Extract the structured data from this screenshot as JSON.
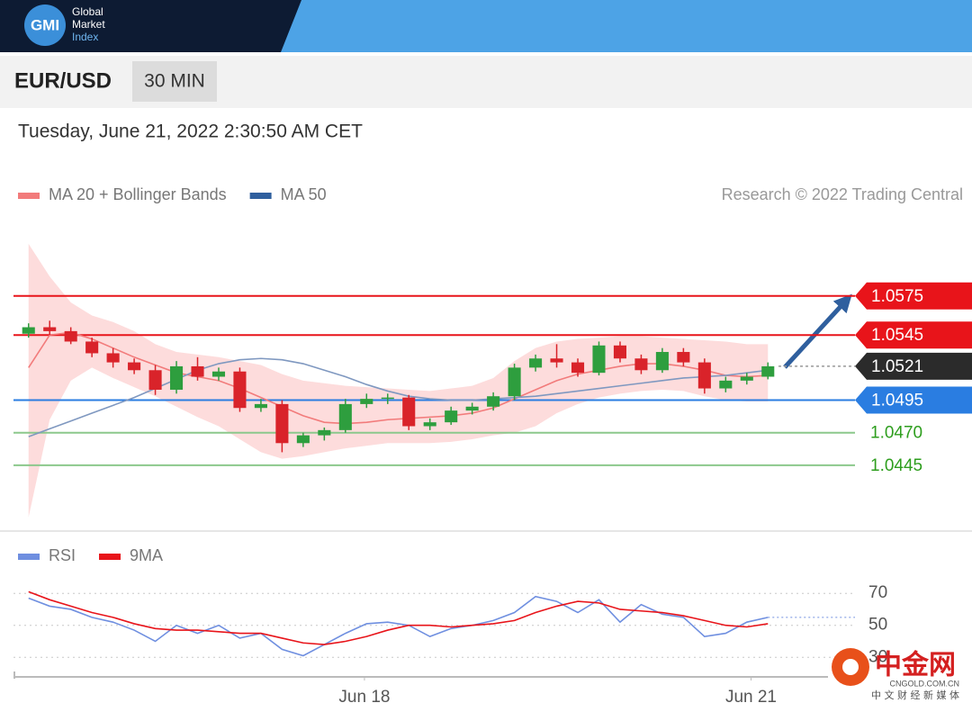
{
  "header": {
    "logo": "GMI",
    "brand": [
      "Global",
      "Market",
      "Index"
    ]
  },
  "symbol": "EUR/USD",
  "interval": "30 MIN",
  "datetime": "Tuesday, June 21, 2022 2:30:50 AM CET",
  "watermark": {
    "name": "中金网",
    "url": "CNGOLD.COM.CN",
    "tagline": "中 文 财 经 新 媒 体"
  },
  "chart_data": [
    {
      "type": "candlestick",
      "credit": "Research © 2022 Trading Central",
      "xlim": [
        -0.5,
        35.5
      ],
      "ylim": [
        1.04,
        1.0635
      ],
      "up_color": "#2e9e3e",
      "down_color": "#d9232a",
      "candles": {
        "open": [
          1.0546,
          1.0551,
          1.0548,
          1.054,
          1.0531,
          1.0524,
          1.0518,
          1.0503,
          1.0521,
          1.0513,
          1.0517,
          1.0489,
          1.0492,
          1.0462,
          1.0468,
          1.0472,
          1.0492,
          1.0496,
          1.0497,
          1.0475,
          1.0478,
          1.0487,
          1.049,
          1.0498,
          1.052,
          1.0527,
          1.0524,
          1.0516,
          1.0537,
          1.0527,
          1.0518,
          1.0532,
          1.0524,
          1.0504,
          1.051,
          1.0513
        ],
        "high": [
          1.0554,
          1.0556,
          1.0551,
          1.0543,
          1.0535,
          1.0527,
          1.0522,
          1.0525,
          1.0528,
          1.052,
          1.052,
          1.0496,
          1.0495,
          1.047,
          1.0474,
          1.0496,
          1.05,
          1.05,
          1.0499,
          1.0481,
          1.049,
          1.0493,
          1.0501,
          1.0523,
          1.053,
          1.0538,
          1.0527,
          1.054,
          1.054,
          1.053,
          1.0535,
          1.0535,
          1.0527,
          1.0513,
          1.0516,
          1.0524
        ],
        "low": [
          1.0543,
          1.0545,
          1.0538,
          1.0528,
          1.052,
          1.0515,
          1.0499,
          1.05,
          1.051,
          1.051,
          1.0486,
          1.0486,
          1.0455,
          1.0459,
          1.0464,
          1.047,
          1.0489,
          1.0492,
          1.0472,
          1.0472,
          1.0476,
          1.0484,
          1.0487,
          1.0495,
          1.0517,
          1.052,
          1.0513,
          1.0514,
          1.0524,
          1.0515,
          1.0516,
          1.0521,
          1.05,
          1.0501,
          1.0507,
          1.0511
        ],
        "close": [
          1.0551,
          1.0548,
          1.054,
          1.0531,
          1.0524,
          1.0518,
          1.0503,
          1.0521,
          1.0513,
          1.0517,
          1.0489,
          1.0492,
          1.0462,
          1.0468,
          1.0472,
          1.0492,
          1.0496,
          1.0497,
          1.0475,
          1.0478,
          1.0487,
          1.049,
          1.0498,
          1.052,
          1.0527,
          1.0524,
          1.0516,
          1.0537,
          1.0527,
          1.0518,
          1.0532,
          1.0524,
          1.0504,
          1.051,
          1.0513,
          1.0521
        ]
      },
      "series": [
        {
          "name": "MA 20 + Bollinger Bands",
          "color": "#f27b7b",
          "band_color": "#fdd3d3",
          "values": [
            1.052,
            1.0545,
            1.0547,
            1.0542,
            1.0535,
            1.0528,
            1.0522,
            1.0516,
            1.0513,
            1.051,
            1.0504,
            1.0497,
            1.049,
            1.0483,
            1.0478,
            1.0477,
            1.0478,
            1.048,
            1.0481,
            1.0482,
            1.0483,
            1.0485,
            1.0489,
            1.0496,
            1.0503,
            1.051,
            1.0515,
            1.0518,
            1.0521,
            1.0523,
            1.0523,
            1.0521,
            1.0518,
            1.0514,
            1.0513,
            1.0514
          ],
          "upper": [
            1.0615,
            1.059,
            1.057,
            1.056,
            1.0555,
            1.0548,
            1.0538,
            1.0532,
            1.053,
            1.0528,
            1.0525,
            1.0522,
            1.0515,
            1.051,
            1.0508,
            1.0506,
            1.0505,
            1.0504,
            1.0503,
            1.0502,
            1.0504,
            1.0506,
            1.0512,
            1.0525,
            1.0535,
            1.054,
            1.0542,
            1.0543,
            1.0544,
            1.0544,
            1.0543,
            1.0542,
            1.0541,
            1.054,
            1.0538,
            1.0538
          ],
          "lower": [
            1.0405,
            1.048,
            1.051,
            1.052,
            1.0512,
            1.0505,
            1.0498,
            1.049,
            1.0482,
            1.0475,
            1.0465,
            1.0455,
            1.045,
            1.0452,
            1.0455,
            1.0458,
            1.046,
            1.0462,
            1.0462,
            1.0462,
            1.0463,
            1.0465,
            1.0468,
            1.047,
            1.0475,
            1.0485,
            1.0492,
            1.0497,
            1.05,
            1.0502,
            1.0503,
            1.0502,
            1.0498,
            1.0495,
            1.0494,
            1.0494
          ]
        },
        {
          "name": "MA 50",
          "color": "#2f5f9e",
          "line_color": "#7f98c0",
          "values": [
            1.0467,
            1.0473,
            1.0479,
            1.0485,
            1.0491,
            1.0497,
            1.0504,
            1.0511,
            1.0518,
            1.0523,
            1.0526,
            1.0527,
            1.0526,
            1.0523,
            1.0518,
            1.0513,
            1.0507,
            1.0502,
            1.0498,
            1.0496,
            1.0495,
            1.0495,
            1.0496,
            1.0497,
            1.0498,
            1.05,
            1.0502,
            1.0504,
            1.0506,
            1.0508,
            1.051,
            1.0512,
            1.0513,
            1.0514,
            1.0516,
            1.0518
          ]
        }
      ],
      "levels": [
        {
          "value": 1.0575,
          "color": "#e8141a",
          "label_fill": "#e8141a"
        },
        {
          "value": 1.0545,
          "color": "#e8141a",
          "label_fill": "#e8141a"
        },
        {
          "value": 1.0521,
          "color": "#9a9a9a",
          "label_fill": "#2b2b2b",
          "line_style": "dotted"
        },
        {
          "value": 1.0495,
          "color": "#2a7de1",
          "label_fill": "#2a7de1"
        },
        {
          "value": 1.047,
          "label": "1.0470",
          "color": "#8cc88c",
          "label_color": "#2e9e1e"
        },
        {
          "value": 1.0445,
          "color": "#8cc88c",
          "label_color": "#2e9e1e"
        }
      ]
    },
    {
      "type": "line",
      "xlim": [
        -0.5,
        35.5
      ],
      "ylim": [
        20,
        78
      ],
      "yticks": [
        30,
        50,
        70
      ],
      "grid": true,
      "xticks": [
        {
          "value": 15.9,
          "label": "Jun 18"
        },
        {
          "value": 34.2,
          "label": "Jun 21"
        }
      ],
      "series": [
        {
          "name": "RSI",
          "color": "#6f8fe0",
          "values": [
            67,
            62,
            60,
            55,
            52,
            47,
            40,
            50,
            45,
            50,
            42,
            45,
            35,
            31,
            38,
            45,
            51,
            52,
            50,
            43,
            48,
            50,
            53,
            58,
            68,
            65,
            58,
            66,
            52,
            63,
            57,
            55,
            43,
            45,
            52,
            55
          ]
        },
        {
          "name": "9MA",
          "color": "#e8141a",
          "values": [
            71,
            66,
            62,
            58,
            55,
            51,
            48,
            47,
            47,
            46,
            45,
            45,
            42,
            39,
            38,
            40,
            43,
            47,
            50,
            50,
            49,
            50,
            51,
            53,
            58,
            62,
            65,
            64,
            60,
            59,
            58,
            56,
            53,
            50,
            49,
            51
          ]
        }
      ]
    }
  ]
}
